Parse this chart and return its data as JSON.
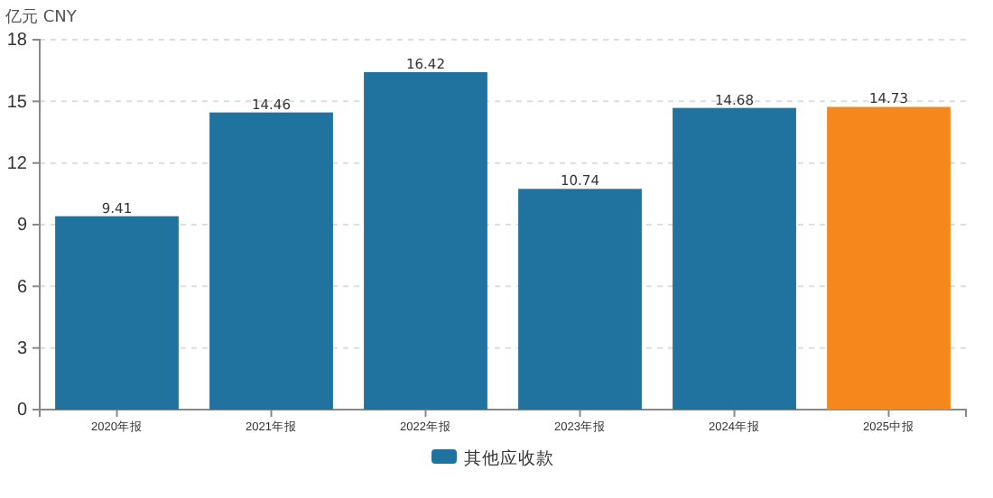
{
  "chart_data": {
    "type": "bar",
    "ylabel": "亿元  CNY",
    "categories": [
      "2020年报",
      "2021年报",
      "2022年报",
      "2023年报",
      "2024年报",
      "2025中报"
    ],
    "series": [
      {
        "name": "其他应收款",
        "color": "#21739f",
        "colors": [
          "#21739f",
          "#21739f",
          "#21739f",
          "#21739f",
          "#21739f",
          "#f5871c"
        ],
        "values": [
          9.41,
          14.46,
          16.42,
          10.74,
          14.68,
          14.73
        ]
      }
    ],
    "ylim": [
      0,
      18
    ],
    "yticks": [
      0,
      3,
      6,
      9,
      12,
      15,
      18
    ],
    "grid": "y",
    "data_labels": true,
    "legend": "bottom"
  }
}
